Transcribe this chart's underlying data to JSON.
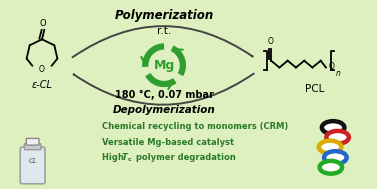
{
  "bg_color": "#dff0c0",
  "border_color": "#b0d080",
  "polymerization_text": "Polymerization",
  "rt_text": "r.t.",
  "depolym_temp_text": "180 °C, 0.07 mbar",
  "depolym_text": "Depolymerization",
  "ecl_label": "ε-CL",
  "pcl_label": "PCL",
  "bullet1": "Chemical recycling to monomers (CRM)",
  "bullet2": "Versatile Mg-based catalyst",
  "bullet3_pre": "High ",
  "bullet3_T": "T",
  "bullet3_sub": "c",
  "bullet3_post": " polymer degradation",
  "mg_label": "Mg",
  "green_color": "#2e9e2e",
  "dark_green_text": "#2a7a2a",
  "arrow_color": "#444444",
  "ring_colors": [
    "#111111",
    "#cc2222",
    "#ddaa00",
    "#2266cc",
    "#22aa22"
  ],
  "ring_offsets_x": [
    0.0,
    0.12,
    -0.08,
    0.06,
    -0.06
  ],
  "ring_offsets_y": [
    0.62,
    0.36,
    0.1,
    -0.18,
    -0.44
  ]
}
